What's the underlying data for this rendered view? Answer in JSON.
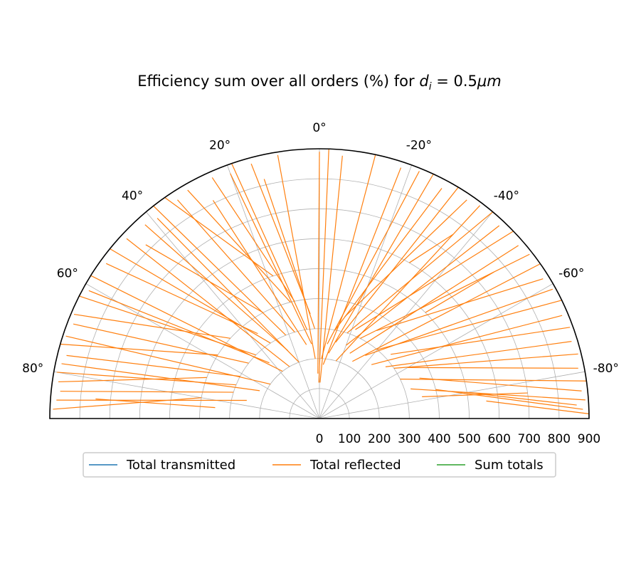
{
  "chart_data": {
    "type": "polar-lines",
    "title": "Efficiency sum over all orders (%) for ",
    "title_math": {
      "symbol": "d",
      "subscript": "i",
      "equals": " = 0.5",
      "unit": "μm"
    },
    "theta_range_deg": [
      -90,
      90
    ],
    "r_range": [
      0,
      900
    ],
    "theta_ticks": [
      {
        "deg": 0,
        "label": "0°"
      },
      {
        "deg": 20,
        "label": "20°"
      },
      {
        "deg": -20,
        "label": "-20°"
      },
      {
        "deg": 40,
        "label": "40°"
      },
      {
        "deg": -40,
        "label": "-40°"
      },
      {
        "deg": 60,
        "label": "60°"
      },
      {
        "deg": -60,
        "label": "-60°"
      },
      {
        "deg": 80,
        "label": "80°"
      },
      {
        "deg": -80,
        "label": "-80°"
      }
    ],
    "r_ticks": [
      0,
      100,
      200,
      300,
      400,
      500,
      600,
      700,
      800,
      900
    ],
    "grid": true,
    "legend": {
      "placement": "below",
      "entries": [
        {
          "name": "Total transmitted",
          "color": "#1f77b4"
        },
        {
          "name": "Total reflected",
          "color": "#ff7f0e"
        },
        {
          "name": "Sum totals",
          "color": "#2ca02c"
        }
      ]
    },
    "series": [
      {
        "name": "Total reflected",
        "color": "#ff7f0e",
        "segments": [
          [
            [
              1,
              120
            ],
            [
              -2,
              900
            ]
          ],
          [
            [
              2,
              150
            ],
            [
              0,
              890
            ]
          ],
          [
            [
              4,
              200
            ],
            [
              9,
              890
            ]
          ],
          [
            [
              5,
              350
            ],
            [
              15,
              880
            ]
          ],
          [
            [
              3,
              300
            ],
            [
              13,
              820
            ]
          ],
          [
            [
              6,
              250
            ],
            [
              20,
              870
            ]
          ],
          [
            [
              8,
              300
            ],
            [
              19,
              900
            ]
          ],
          [
            [
              12,
              400
            ],
            [
              24,
              880
            ]
          ],
          [
            [
              10,
              250
            ],
            [
              26,
              810
            ]
          ],
          [
            [
              14,
              400
            ],
            [
              30,
              880
            ]
          ],
          [
            [
              16,
              300
            ],
            [
              33,
              870
            ]
          ],
          [
            [
              18,
              500
            ],
            [
              35,
              900
            ]
          ],
          [
            [
              20,
              200
            ],
            [
              39,
              860
            ]
          ],
          [
            [
              22,
              300
            ],
            [
              38,
              900
            ]
          ],
          [
            [
              25,
              250
            ],
            [
              42,
              870
            ]
          ],
          [
            [
              28,
              400
            ],
            [
              45,
              820
            ]
          ],
          [
            [
              30,
              200
            ],
            [
              47,
              880
            ]
          ],
          [
            [
              33,
              300
            ],
            [
              51,
              900
            ]
          ],
          [
            [
              36,
              350
            ],
            [
              54,
              880
            ]
          ],
          [
            [
              38,
              200
            ],
            [
              58,
              900
            ]
          ],
          [
            [
              42,
              250
            ],
            [
              61,
              880
            ]
          ],
          [
            [
              45,
              300
            ],
            [
              63,
              900
            ]
          ],
          [
            [
              48,
              400
            ],
            [
              67,
              890
            ]
          ],
          [
            [
              52,
              300
            ],
            [
              69,
              880
            ]
          ],
          [
            [
              55,
              200
            ],
            [
              72,
              890
            ]
          ],
          [
            [
              58,
              400
            ],
            [
              74,
              900
            ]
          ],
          [
            [
              62,
              300
            ],
            [
              76,
              870
            ]
          ],
          [
            [
              65,
              220
            ],
            [
              78,
              880
            ]
          ],
          [
            [
              68,
              300
            ],
            [
              80,
              890
            ]
          ],
          [
            [
              70,
              400
            ],
            [
              82,
              880
            ]
          ],
          [
            [
              73,
              300
            ],
            [
              84,
              870
            ]
          ],
          [
            [
              76,
              250
            ],
            [
              86,
              880
            ]
          ],
          [
            [
              80,
              400
            ],
            [
              88,
              890
            ]
          ],
          [
            [
              84,
              350
            ],
            [
              85,
              750
            ]
          ],
          [
            [
              -1,
              120
            ],
            [
              -5,
              880
            ]
          ],
          [
            [
              -2,
              200
            ],
            [
              -12,
              900
            ]
          ],
          [
            [
              -4,
              180
            ],
            [
              -18,
              880
            ]
          ],
          [
            [
              -6,
              250
            ],
            [
              -22,
              890
            ]
          ],
          [
            [
              -8,
              220
            ],
            [
              -25,
              900
            ]
          ],
          [
            [
              -10,
              300
            ],
            [
              -28,
              870
            ]
          ],
          [
            [
              -12,
              260
            ],
            [
              -31,
              900
            ]
          ],
          [
            [
              -14,
              350
            ],
            [
              -34,
              880
            ]
          ],
          [
            [
              -16,
              200
            ],
            [
              -37,
              890
            ]
          ],
          [
            [
              -18,
              300
            ],
            [
              -40,
              900
            ]
          ],
          [
            [
              -20,
              260
            ],
            [
              -43,
              880
            ]
          ],
          [
            [
              -22,
              320
            ],
            [
              -46,
              900
            ]
          ],
          [
            [
              -25,
              240
            ],
            [
              -49,
              880
            ]
          ],
          [
            [
              -27,
              300
            ],
            [
              -52,
              890
            ]
          ],
          [
            [
              -30,
              220
            ],
            [
              -55,
              900
            ]
          ],
          [
            [
              -33,
              350
            ],
            [
              -58,
              880
            ]
          ],
          [
            [
              -36,
              260
            ],
            [
              -61,
              890
            ]
          ],
          [
            [
              -40,
              300
            ],
            [
              -64,
              900
            ]
          ],
          [
            [
              -44,
              250
            ],
            [
              -67,
              880
            ]
          ],
          [
            [
              -48,
              320
            ],
            [
              -70,
              890
            ]
          ],
          [
            [
              -52,
              280
            ],
            [
              -73,
              880
            ]
          ],
          [
            [
              -56,
              300
            ],
            [
              -76,
              890
            ]
          ],
          [
            [
              -60,
              340
            ],
            [
              -79,
              880
            ]
          ],
          [
            [
              -64,
              300
            ],
            [
              -82,
              900
            ]
          ],
          [
            [
              -68,
              360
            ],
            [
              -84,
              880
            ]
          ],
          [
            [
              -72,
              320
            ],
            [
              -86,
              890
            ]
          ],
          [
            [
              -76,
              400
            ],
            [
              -88,
              880
            ]
          ],
          [
            [
              -80,
              500
            ],
            [
              -87,
              860
            ]
          ],
          [
            [
              -84,
              560
            ],
            [
              -89,
              900
            ]
          ],
          [
            [
              -78,
              350
            ],
            [
              -83,
              700
            ]
          ],
          [
            [
              -45,
              500
            ],
            [
              -50,
              760
            ]
          ],
          [
            [
              -30,
              600
            ],
            [
              -36,
              760
            ]
          ]
        ]
      }
    ]
  }
}
